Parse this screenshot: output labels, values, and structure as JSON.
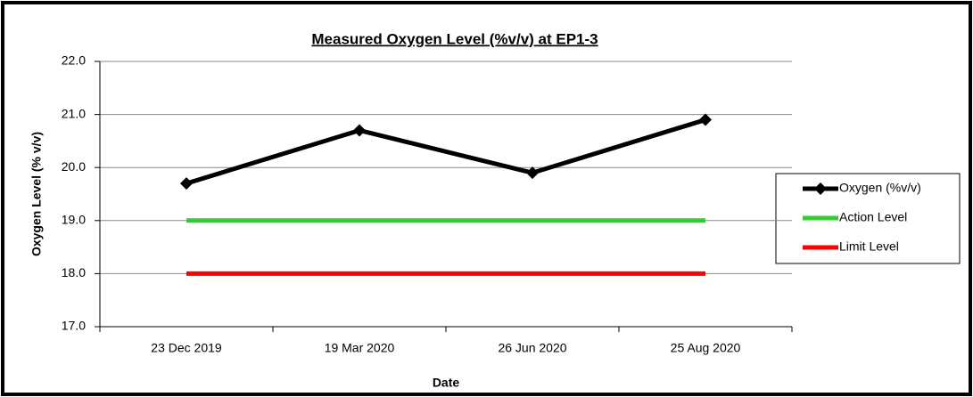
{
  "chart_data": {
    "type": "line",
    "title": "Measured Oxygen Level (%v/v) at EP1-3",
    "x_label": "Date",
    "y_label": "Oxygen Level (% v/v)",
    "categories": [
      "23 Dec 2019",
      "19 Mar 2020",
      "26 Jun 2020",
      "25 Aug 2020"
    ],
    "series": [
      {
        "name": "Oxygen (%v/v)",
        "color": "#000000",
        "marker": "diamond",
        "values": [
          19.7,
          20.7,
          19.9,
          20.9
        ]
      },
      {
        "name": "Action Level",
        "color": "#33cc33",
        "values": [
          19,
          19,
          19,
          19
        ]
      },
      {
        "name": "Limit Level",
        "color": "#ff0000",
        "values": [
          18,
          18,
          18,
          18
        ]
      }
    ],
    "ylim": [
      17,
      22
    ],
    "yticks": [
      {
        "value": 17,
        "label": "17.0"
      },
      {
        "value": 18,
        "label": "18.0"
      },
      {
        "value": 19,
        "label": "19.0"
      },
      {
        "value": 20,
        "label": "20.0"
      },
      {
        "value": 21,
        "label": "21.0"
      },
      {
        "value": 22,
        "label": "22.0"
      }
    ],
    "grid": true,
    "legend": "right"
  }
}
